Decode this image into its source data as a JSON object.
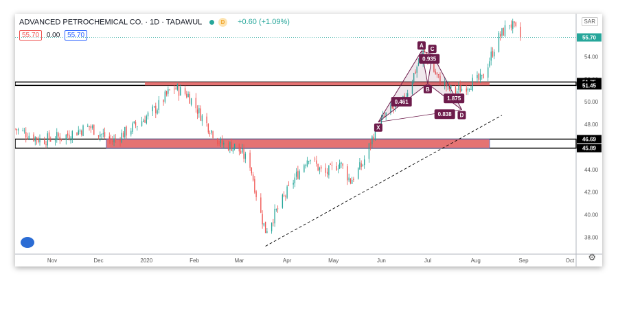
{
  "header": {
    "symbol_line": "ADVANCED PETROCHEMICAL CO. · 1D · TADAWUL",
    "delay_badge": "D",
    "change": "+0.60 (+1.09%)",
    "open_value": "55.70",
    "spread": "0.00",
    "close_value": "55.70",
    "currency": "SAR"
  },
  "icons": {
    "logo": "tradingview-logo-icon",
    "settings": "gear-icon"
  },
  "colors": {
    "up": "#26a69a",
    "down": "#ef5350",
    "zone": "#e57373",
    "pattern": "#6d1b4b",
    "last_price": "#26a69a"
  },
  "chart_data": {
    "type": "candlestick",
    "title": "ADVANCED PETROCHEMICAL CO. · 1D · TADAWUL",
    "ylim": [
      36.5,
      57.8
    ],
    "y_ticks": [
      38.0,
      40.0,
      42.0,
      44.0,
      46.0,
      48.0,
      50.0,
      52.0,
      54.0
    ],
    "x_range": [
      "2019-10-08",
      "2020-10-05"
    ],
    "x_ticks": [
      {
        "label": "Nov",
        "date": "2019-11-01"
      },
      {
        "label": "Dec",
        "date": "2019-12-01"
      },
      {
        "label": "2020",
        "date": "2020-01-01"
      },
      {
        "label": "Feb",
        "date": "2020-02-01"
      },
      {
        "label": "Mar",
        "date": "2020-03-01"
      },
      {
        "label": "Apr",
        "date": "2020-04-01"
      },
      {
        "label": "May",
        "date": "2020-05-01"
      },
      {
        "label": "Jun",
        "date": "2020-06-01"
      },
      {
        "label": "Jul",
        "date": "2020-07-01"
      },
      {
        "label": "Aug",
        "date": "2020-08-01"
      },
      {
        "label": "Sep",
        "date": "2020-09-01"
      },
      {
        "label": "Oct",
        "date": "2020-10-01"
      }
    ],
    "path": [
      [
        "2019-10-08",
        47.6
      ],
      [
        "2019-10-25",
        46.6
      ],
      [
        "2019-11-10",
        47.0
      ],
      [
        "2019-11-25",
        47.8
      ],
      [
        "2019-12-10",
        46.5
      ],
      [
        "2019-12-28",
        48.2
      ],
      [
        "2020-01-08",
        49.5
      ],
      [
        "2020-01-18",
        51.3
      ],
      [
        "2020-01-28",
        50.6
      ],
      [
        "2020-02-08",
        48.2
      ],
      [
        "2020-02-18",
        46.3
      ],
      [
        "2020-02-28",
        46.0
      ],
      [
        "2020-03-08",
        44.5
      ],
      [
        "2020-03-14",
        40.5
      ],
      [
        "2020-03-18",
        38.6
      ],
      [
        "2020-03-26",
        40.5
      ],
      [
        "2020-04-05",
        43.0
      ],
      [
        "2020-04-15",
        45.2
      ],
      [
        "2020-04-25",
        43.5
      ],
      [
        "2020-05-05",
        44.6
      ],
      [
        "2020-05-12",
        43.0
      ],
      [
        "2020-05-20",
        44.5
      ],
      [
        "2020-05-28",
        47.5
      ],
      [
        "2020-06-05",
        49.0
      ],
      [
        "2020-06-15",
        50.0
      ],
      [
        "2020-06-28",
        54.5
      ],
      [
        "2020-07-08",
        52.0
      ],
      [
        "2020-07-18",
        50.8
      ],
      [
        "2020-07-28",
        51.6
      ],
      [
        "2020-08-05",
        52.0
      ],
      [
        "2020-08-15",
        55.5
      ],
      [
        "2020-08-23",
        57.0
      ],
      [
        "2020-08-30",
        55.7
      ]
    ],
    "last_price": 55.7,
    "resistance_zone": {
      "low": 51.45,
      "high": 51.75,
      "start": "2019-12-31"
    },
    "support_zone": {
      "low": 45.89,
      "high": 46.69,
      "start": "2019-12-06",
      "end": "2020-08-10"
    },
    "trendline": {
      "from": [
        "2020-03-18",
        37.2
      ],
      "to": [
        "2020-08-18",
        48.8
      ]
    },
    "harmonic_pattern": {
      "points": [
        {
          "label": "X",
          "date": "2020-05-30",
          "price": 48.2
        },
        {
          "label": "A",
          "date": "2020-06-27",
          "price": 54.5
        },
        {
          "label": "B",
          "date": "2020-07-01",
          "price": 51.6
        },
        {
          "label": "C",
          "date": "2020-07-04",
          "price": 54.2
        },
        {
          "label": "D",
          "date": "2020-07-23",
          "price": 49.3
        }
      ],
      "ratios": [
        {
          "label": "0.461",
          "date": "2020-06-14",
          "price": 50.0
        },
        {
          "label": "0.935",
          "date": "2020-07-02",
          "price": 53.8
        },
        {
          "label": "1.875",
          "date": "2020-07-18",
          "price": 50.3
        },
        {
          "label": "0.838",
          "date": "2020-07-12",
          "price": 48.9
        }
      ]
    },
    "price_labels": [
      {
        "label": "55.70",
        "price": 55.7,
        "kind": "last"
      },
      {
        "label": "51.75",
        "price": 51.75,
        "kind": "level"
      },
      {
        "label": "51.45",
        "price": 51.45,
        "kind": "level"
      },
      {
        "label": "46.69",
        "price": 46.69,
        "kind": "level"
      },
      {
        "label": "45.89",
        "price": 45.89,
        "kind": "level"
      }
    ]
  }
}
